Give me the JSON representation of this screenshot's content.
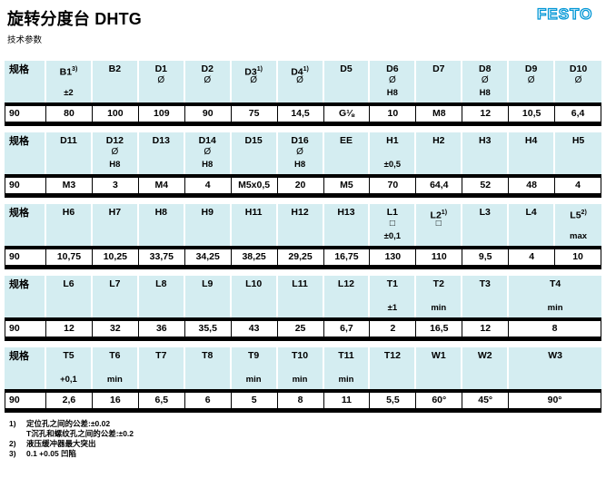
{
  "header": {
    "title": "旋转分度台 DHTG",
    "subtitle": "技术参数",
    "logo": "FESTO"
  },
  "colors": {
    "table_header_bg": "#d4edf1",
    "logo_blue": "#0096d6",
    "bar_black": "#000000"
  },
  "tables": [
    {
      "spec_label": "规格",
      "size_value": "90",
      "columns": [
        {
          "name": "B1",
          "sup": "3)",
          "sym": "",
          "tol": "±2",
          "value": "80",
          "span": 1
        },
        {
          "name": "B2",
          "sup": "",
          "sym": "",
          "tol": "",
          "value": "100",
          "span": 1
        },
        {
          "name": "D1",
          "sup": "",
          "sym": "Ø",
          "tol": "",
          "value": "109",
          "span": 1
        },
        {
          "name": "D2",
          "sup": "",
          "sym": "Ø",
          "tol": "",
          "value": "90",
          "span": 1
        },
        {
          "name": "D3",
          "sup": "1)",
          "sym": "Ø",
          "tol": "",
          "value": "75",
          "span": 1
        },
        {
          "name": "D4",
          "sup": "1)",
          "sym": "Ø",
          "tol": "",
          "value": "14,5",
          "span": 1
        },
        {
          "name": "D5",
          "sup": "",
          "sym": "",
          "tol": "",
          "value": "G⅛",
          "span": 1
        },
        {
          "name": "D6",
          "sup": "",
          "sym": "Ø",
          "tol": "H8",
          "value": "10",
          "span": 1
        },
        {
          "name": "D7",
          "sup": "",
          "sym": "",
          "tol": "",
          "value": "M8",
          "span": 1
        },
        {
          "name": "D8",
          "sup": "",
          "sym": "Ø",
          "tol": "H8",
          "value": "12",
          "span": 1
        },
        {
          "name": "D9",
          "sup": "",
          "sym": "Ø",
          "tol": "",
          "value": "10,5",
          "span": 1
        },
        {
          "name": "D10",
          "sup": "",
          "sym": "Ø",
          "tol": "",
          "value": "6,4",
          "span": 1
        }
      ]
    },
    {
      "spec_label": "规格",
      "size_value": "90",
      "columns": [
        {
          "name": "D11",
          "sup": "",
          "sym": "",
          "tol": "",
          "value": "M3",
          "span": 1
        },
        {
          "name": "D12",
          "sup": "",
          "sym": "Ø",
          "tol": "H8",
          "value": "3",
          "span": 1
        },
        {
          "name": "D13",
          "sup": "",
          "sym": "",
          "tol": "",
          "value": "M4",
          "span": 1
        },
        {
          "name": "D14",
          "sup": "",
          "sym": "Ø",
          "tol": "H8",
          "value": "4",
          "span": 1
        },
        {
          "name": "D15",
          "sup": "",
          "sym": "",
          "tol": "",
          "value": "M5x0,5",
          "span": 1
        },
        {
          "name": "D16",
          "sup": "",
          "sym": "Ø",
          "tol": "H8",
          "value": "20",
          "span": 1
        },
        {
          "name": "EE",
          "sup": "",
          "sym": "",
          "tol": "",
          "value": "M5",
          "span": 1
        },
        {
          "name": "H1",
          "sup": "",
          "sym": "",
          "tol": "±0,5",
          "value": "70",
          "span": 1
        },
        {
          "name": "H2",
          "sup": "",
          "sym": "",
          "tol": "",
          "value": "64,4",
          "span": 1
        },
        {
          "name": "H3",
          "sup": "",
          "sym": "",
          "tol": "",
          "value": "52",
          "span": 1
        },
        {
          "name": "H4",
          "sup": "",
          "sym": "",
          "tol": "",
          "value": "48",
          "span": 1
        },
        {
          "name": "H5",
          "sup": "",
          "sym": "",
          "tol": "",
          "value": "4",
          "span": 1
        }
      ]
    },
    {
      "spec_label": "规格",
      "size_value": "90",
      "columns": [
        {
          "name": "H6",
          "sup": "",
          "sym": "",
          "tol": "",
          "value": "10,75",
          "span": 1
        },
        {
          "name": "H7",
          "sup": "",
          "sym": "",
          "tol": "",
          "value": "10,25",
          "span": 1
        },
        {
          "name": "H8",
          "sup": "",
          "sym": "",
          "tol": "",
          "value": "33,75",
          "span": 1
        },
        {
          "name": "H9",
          "sup": "",
          "sym": "",
          "tol": "",
          "value": "34,25",
          "span": 1
        },
        {
          "name": "H11",
          "sup": "",
          "sym": "",
          "tol": "",
          "value": "38,25",
          "span": 1
        },
        {
          "name": "H12",
          "sup": "",
          "sym": "",
          "tol": "",
          "value": "29,25",
          "span": 1
        },
        {
          "name": "H13",
          "sup": "",
          "sym": "",
          "tol": "",
          "value": "16,75",
          "span": 1
        },
        {
          "name": "L1",
          "sup": "",
          "sym": "□",
          "tol": "±0,1",
          "value": "130",
          "span": 1
        },
        {
          "name": "L2",
          "sup": "1)",
          "sym": "□",
          "tol": "",
          "value": "110",
          "span": 1
        },
        {
          "name": "L3",
          "sup": "",
          "sym": "",
          "tol": "",
          "value": "9,5",
          "span": 1
        },
        {
          "name": "L4",
          "sup": "",
          "sym": "",
          "tol": "",
          "value": "4",
          "span": 1
        },
        {
          "name": "L5",
          "sup": "2)",
          "sym": "",
          "tol": "max",
          "value": "10",
          "span": 1
        }
      ]
    },
    {
      "spec_label": "规格",
      "size_value": "90",
      "columns": [
        {
          "name": "L6",
          "sup": "",
          "sym": "",
          "tol": "",
          "value": "12",
          "span": 1
        },
        {
          "name": "L7",
          "sup": "",
          "sym": "",
          "tol": "",
          "value": "32",
          "span": 1
        },
        {
          "name": "L8",
          "sup": "",
          "sym": "",
          "tol": "",
          "value": "36",
          "span": 1
        },
        {
          "name": "L9",
          "sup": "",
          "sym": "",
          "tol": "",
          "value": "35,5",
          "span": 1
        },
        {
          "name": "L10",
          "sup": "",
          "sym": "",
          "tol": "",
          "value": "43",
          "span": 1
        },
        {
          "name": "L11",
          "sup": "",
          "sym": "",
          "tol": "",
          "value": "25",
          "span": 1
        },
        {
          "name": "L12",
          "sup": "",
          "sym": "",
          "tol": "",
          "value": "6,7",
          "span": 1
        },
        {
          "name": "T1",
          "sup": "",
          "sym": "",
          "tol": "±1",
          "value": "2",
          "span": 1
        },
        {
          "name": "T2",
          "sup": "",
          "sym": "",
          "tol": "min",
          "value": "16,5",
          "span": 1
        },
        {
          "name": "T3",
          "sup": "",
          "sym": "",
          "tol": "",
          "value": "12",
          "span": 1
        },
        {
          "name": "T4",
          "sup": "",
          "sym": "",
          "tol": "min",
          "value": "8",
          "span": 2
        }
      ]
    },
    {
      "spec_label": "规格",
      "size_value": "90",
      "columns": [
        {
          "name": "T5",
          "sup": "",
          "sym": "",
          "tol": "+0,1",
          "value": "2,6",
          "span": 1
        },
        {
          "name": "T6",
          "sup": "",
          "sym": "",
          "tol": "min",
          "value": "16",
          "span": 1
        },
        {
          "name": "T7",
          "sup": "",
          "sym": "",
          "tol": "",
          "value": "6,5",
          "span": 1
        },
        {
          "name": "T8",
          "sup": "",
          "sym": "",
          "tol": "",
          "value": "6",
          "span": 1
        },
        {
          "name": "T9",
          "sup": "",
          "sym": "",
          "tol": "min",
          "value": "5",
          "span": 1
        },
        {
          "name": "T10",
          "sup": "",
          "sym": "",
          "tol": "min",
          "value": "8",
          "span": 1
        },
        {
          "name": "T11",
          "sup": "",
          "sym": "",
          "tol": "min",
          "value": "11",
          "span": 1
        },
        {
          "name": "T12",
          "sup": "",
          "sym": "",
          "tol": "",
          "value": "5,5",
          "span": 1
        },
        {
          "name": "W1",
          "sup": "",
          "sym": "",
          "tol": "",
          "value": "60°",
          "span": 1
        },
        {
          "name": "W2",
          "sup": "",
          "sym": "",
          "tol": "",
          "value": "45°",
          "span": 1
        },
        {
          "name": "W3",
          "sup": "",
          "sym": "",
          "tol": "",
          "value": "90°",
          "span": 2
        }
      ]
    }
  ],
  "footnotes": [
    {
      "marker": "1)",
      "text": "定位孔之间的公差:±0.02"
    },
    {
      "marker": "",
      "text": "T沉孔和螺纹孔之间的公差:±0.2"
    },
    {
      "marker": "2)",
      "text": "液压缓冲器最大突出"
    },
    {
      "marker": "3)",
      "text": "0.1 +0.05 凹陷"
    }
  ]
}
